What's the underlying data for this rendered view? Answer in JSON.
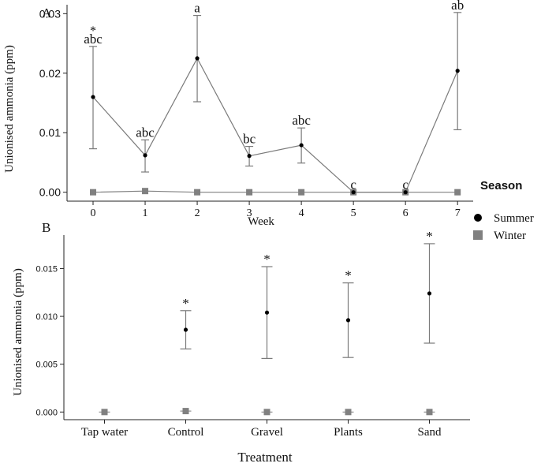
{
  "colors": {
    "summer": "#000000",
    "winter": "#808080",
    "line": "#7a7a7a",
    "axis": "#222222",
    "background": "#ffffff"
  },
  "legend": {
    "title": "Season",
    "items": [
      {
        "label": "Summer",
        "marker": "circle",
        "color": "#000000"
      },
      {
        "label": "Winter",
        "marker": "square",
        "color": "#808080"
      }
    ]
  },
  "chart_data": [
    {
      "panel_label": "A",
      "type": "line",
      "xlabel": "Week",
      "ylabel": "Unionised ammonia (ppm)",
      "x": [
        0,
        1,
        2,
        3,
        4,
        5,
        6,
        7
      ],
      "xlim": [
        -0.5,
        7.3
      ],
      "ylim": [
        -0.0015,
        0.0315
      ],
      "y_ticks": [
        0.0,
        0.01,
        0.02,
        0.03
      ],
      "y_tick_labels": [
        "0.00",
        "0.01",
        "0.02",
        "0.03"
      ],
      "grid": false,
      "legend_position": "right",
      "series": [
        {
          "name": "Summer",
          "values": [
            0.016,
            0.0062,
            0.0225,
            0.0061,
            0.0079,
            0.0,
            0.0,
            0.0204
          ],
          "error_low": [
            0.0073,
            0.0034,
            0.0152,
            0.0044,
            0.0049,
            null,
            null,
            0.0105
          ],
          "error_high": [
            0.0245,
            0.0088,
            0.0297,
            0.0077,
            0.0108,
            null,
            null,
            0.0302
          ]
        },
        {
          "name": "Winter",
          "values": [
            0.0,
            0.0002,
            0.0,
            0.0,
            0.0,
            0.0,
            0.0,
            0.0
          ]
        }
      ],
      "annotations": [
        {
          "x": 0,
          "letters": "abc",
          "star": true
        },
        {
          "x": 1,
          "letters": "abc",
          "star": false
        },
        {
          "x": 2,
          "letters": "a",
          "star": true
        },
        {
          "x": 3,
          "letters": "bc",
          "star": false
        },
        {
          "x": 4,
          "letters": "abc",
          "star": false
        },
        {
          "x": 5,
          "letters": "c",
          "star": false
        },
        {
          "x": 6,
          "letters": "c",
          "star": false
        },
        {
          "x": 7,
          "letters": "ab",
          "star": true
        }
      ]
    },
    {
      "panel_label": "B",
      "type": "scatter",
      "xlabel": "Treatment",
      "ylabel": "Unionised ammonia (ppm)",
      "categories": [
        "Tap water",
        "Control",
        "Gravel",
        "Plants",
        "Sand"
      ],
      "ylim": [
        -0.0008,
        0.0185
      ],
      "y_ticks": [
        0.0,
        0.005,
        0.01,
        0.015
      ],
      "y_tick_labels": [
        "0.000",
        "0.005",
        "0.010",
        "0.015"
      ],
      "grid": false,
      "series": [
        {
          "name": "Summer",
          "values": [
            null,
            0.0086,
            0.0104,
            0.0096,
            0.0124
          ],
          "error_low": [
            null,
            0.0066,
            0.0056,
            0.0057,
            0.0072
          ],
          "error_high": [
            null,
            0.0106,
            0.0152,
            0.0135,
            0.0176
          ]
        },
        {
          "name": "Winter",
          "values": [
            0.0,
            0.0001,
            0.0,
            0.0,
            0.0
          ]
        }
      ],
      "annotations": [
        {
          "category": "Control",
          "star": true
        },
        {
          "category": "Gravel",
          "star": true
        },
        {
          "category": "Plants",
          "star": true
        },
        {
          "category": "Sand",
          "star": true
        }
      ]
    }
  ]
}
